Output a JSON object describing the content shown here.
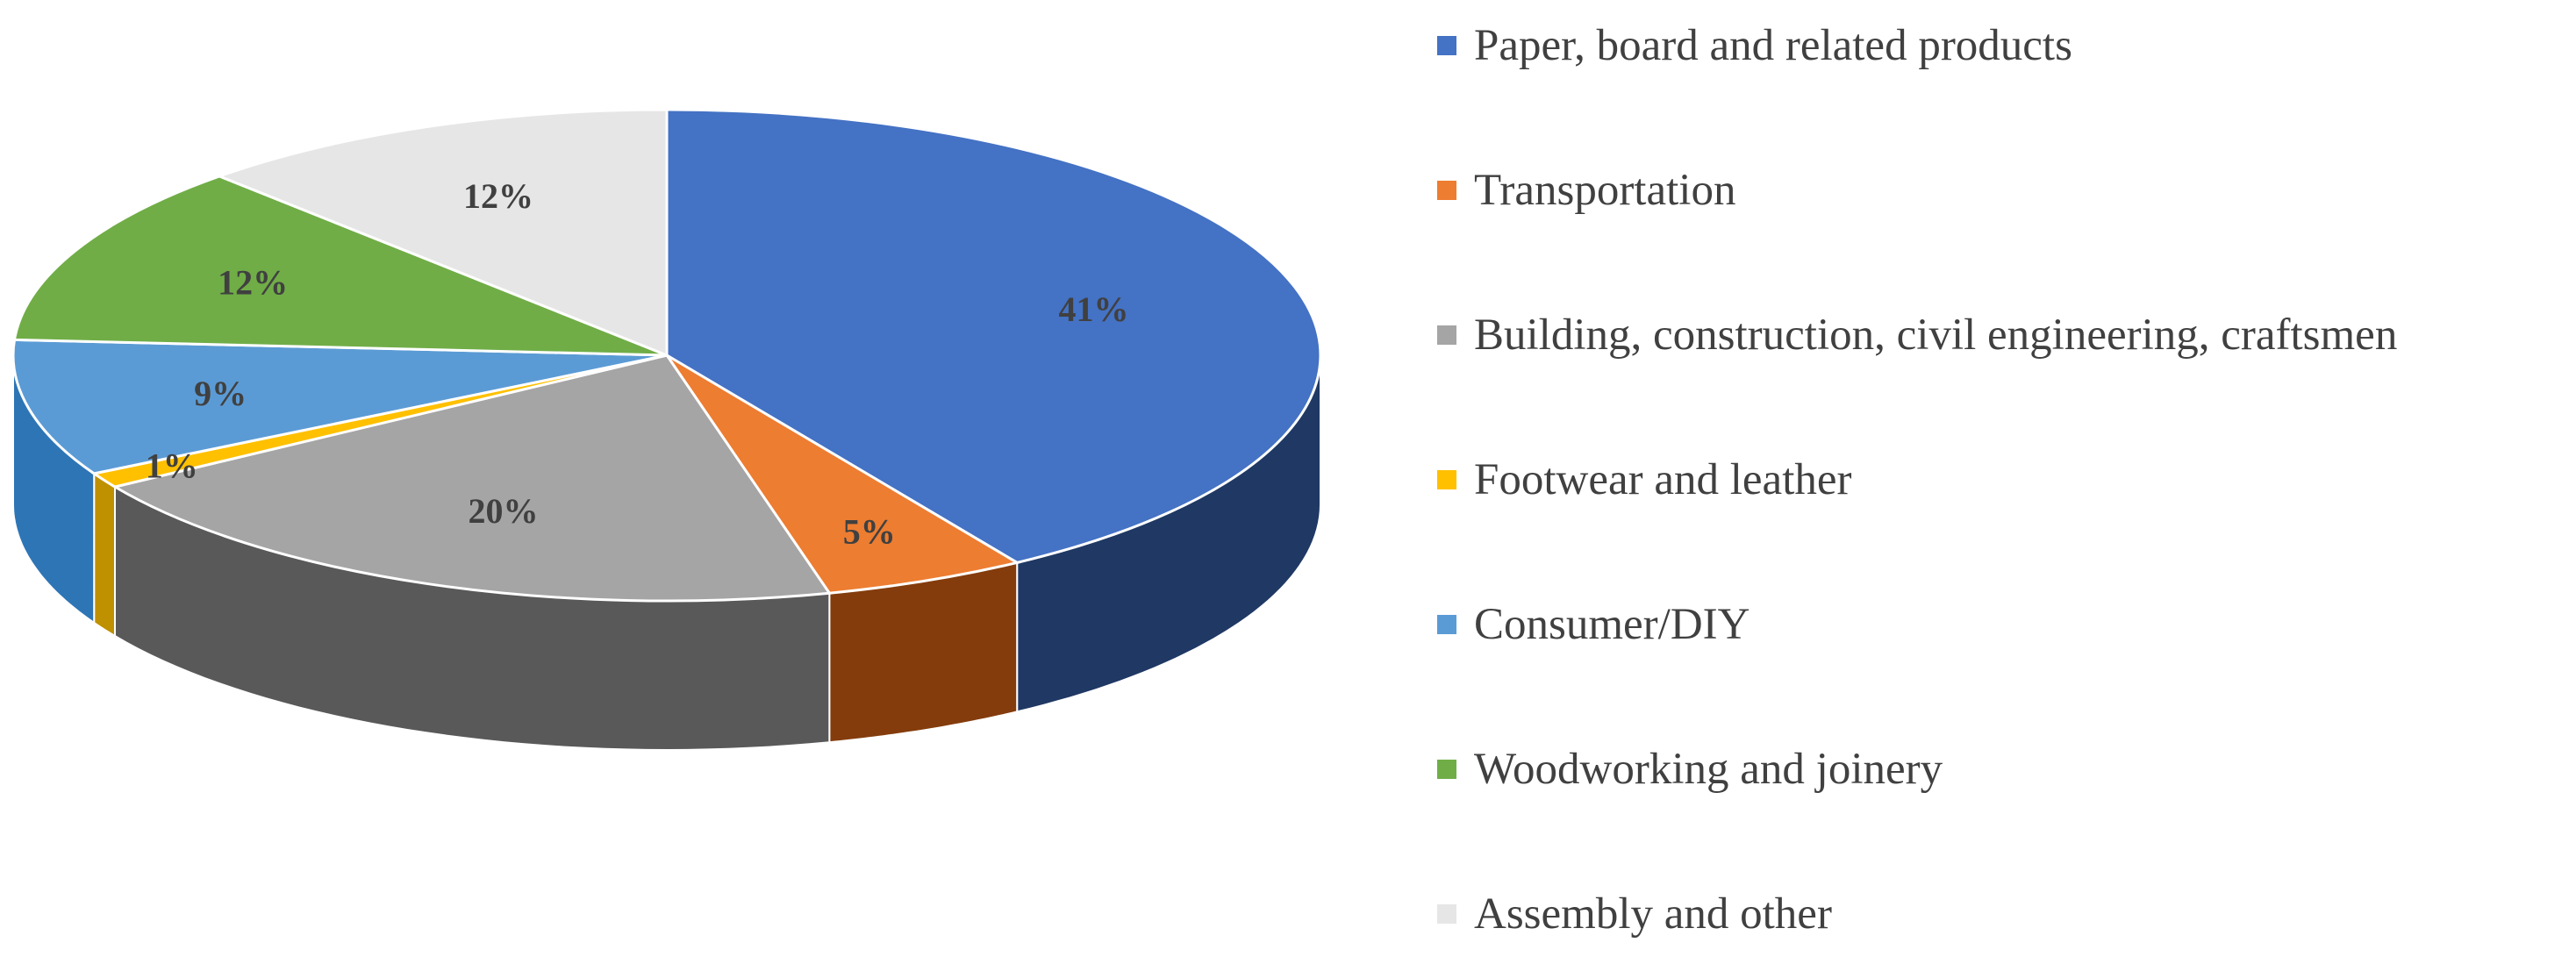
{
  "chart_data": {
    "type": "pie",
    "title": "",
    "legend_position": "right",
    "style": "3d-exploded-tilted",
    "categories": [
      "Paper, board and related products",
      "Transportation",
      "Building, construction, civil engineering, craftsmen",
      "Footwear and leather",
      "Consumer/DIY",
      "Woodworking and joinery",
      "Assembly and other"
    ],
    "values": [
      41,
      5,
      20,
      1,
      9,
      12,
      12
    ],
    "data_labels": [
      "41%",
      "5%",
      "20%",
      "1%",
      "9%",
      "12%",
      "12%"
    ],
    "colors": [
      "#4472C4",
      "#ED7D31",
      "#A5A5A5",
      "#FFC000",
      "#5B9BD5",
      "#70AD47",
      "#E7E6E6"
    ],
    "side_colors": [
      "#1F3864",
      "#843C0C",
      "#595959",
      "#BF9000",
      "#2E75B6",
      "#548235",
      "#AEAAAA"
    ]
  }
}
